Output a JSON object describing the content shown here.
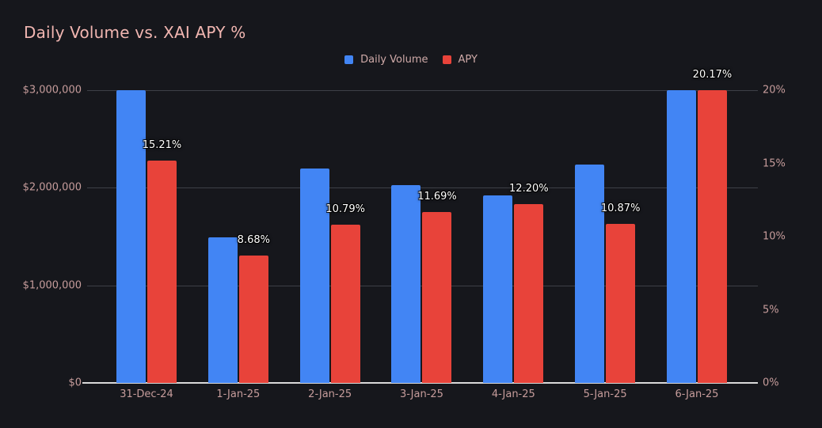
{
  "title": "Daily Volume vs. XAI APY %",
  "colors": {
    "background": "#16171c",
    "volume_bar": "#4285f4",
    "apy_bar": "#e8433a",
    "title_text": "#f1b6b1",
    "axis_label_text": "#c69c9b",
    "legend_text": "#cfaaa8",
    "gridline": "#3e4047",
    "axis_line": "#dadada",
    "bar_label_text": "#ffffff"
  },
  "legend": {
    "items": [
      {
        "label": "Daily Volume",
        "series": "volume"
      },
      {
        "label": "APY",
        "series": "apy"
      }
    ]
  },
  "chart_data": {
    "type": "bar",
    "title": "Daily Volume vs. XAI APY %",
    "categories": [
      "31-Dec-24",
      "1-Jan-25",
      "2-Jan-25",
      "3-Jan-25",
      "4-Jan-25",
      "5-Jan-25",
      "6-Jan-25"
    ],
    "series": [
      {
        "name": "Daily Volume",
        "axis": "left",
        "color": "#4285f4",
        "values": [
          3000000,
          1490000,
          2200000,
          2030000,
          1920000,
          2240000,
          3000000
        ]
      },
      {
        "name": "APY",
        "axis": "right",
        "color": "#e8433a",
        "values": [
          15.21,
          8.68,
          10.79,
          11.69,
          12.2,
          10.87,
          20.17
        ],
        "data_labels": [
          "15.21%",
          "8.68%",
          "10.79%",
          "11.69%",
          "12.20%",
          "10.87%",
          "20.17%"
        ]
      }
    ],
    "left_axis": {
      "range": [
        0,
        3000000
      ],
      "tick_values": [
        0,
        1000000,
        2000000,
        3000000
      ],
      "tick_labels": [
        "$0",
        "$1,000,000",
        "$2,000,000",
        "$3,000,000"
      ]
    },
    "right_axis": {
      "range": [
        0,
        20
      ],
      "tick_values": [
        0,
        5,
        10,
        15,
        20
      ],
      "tick_labels": [
        "0%",
        "5%",
        "10%",
        "15%",
        "20%"
      ]
    },
    "legend_position": "top-center",
    "grid": "horizontal-left-axis-intervals",
    "data_label_series": "APY"
  }
}
